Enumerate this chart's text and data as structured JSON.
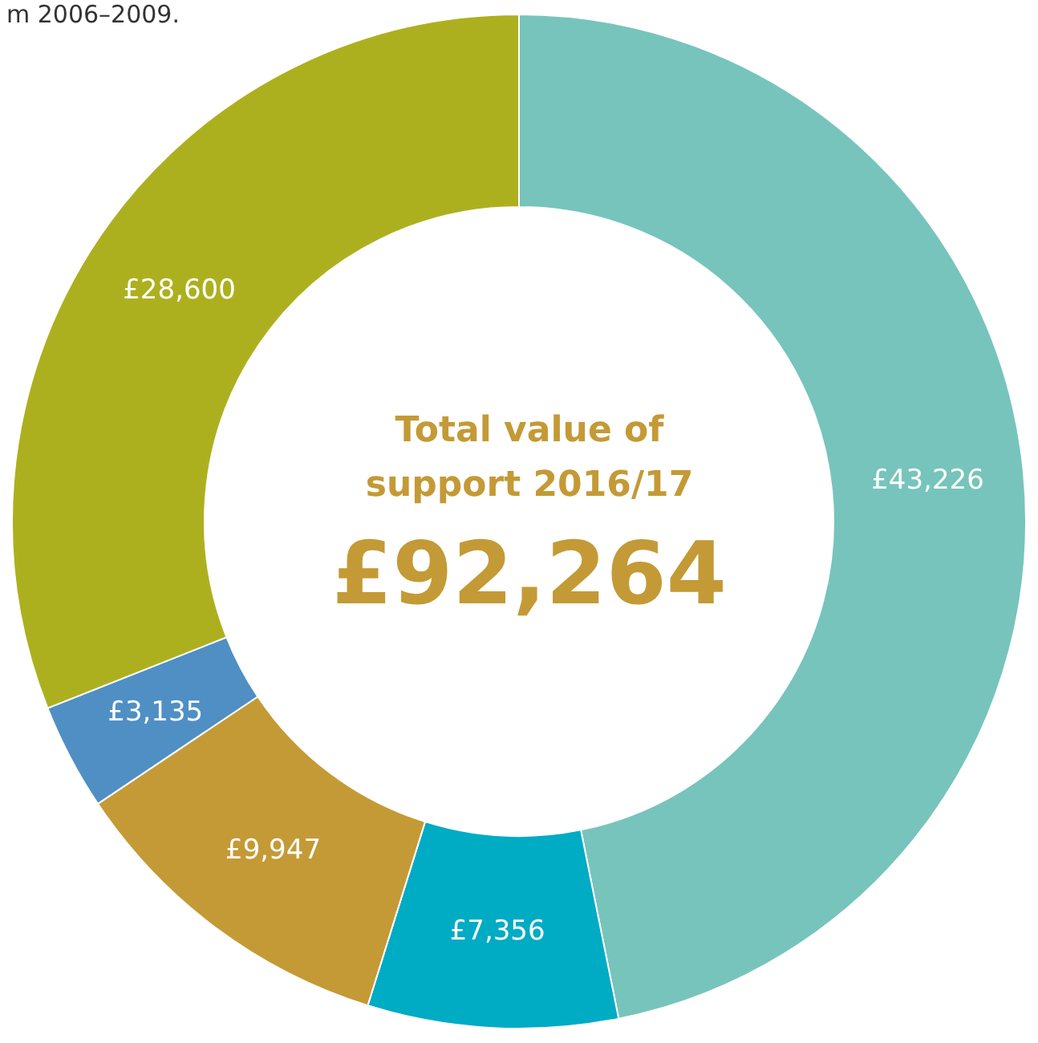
{
  "chart_data": {
    "type": "donut",
    "title": "Total value of support 2016/17",
    "categories": [
      null,
      null,
      null,
      null,
      null
    ],
    "values": [
      43226,
      7356,
      9947,
      3135,
      28600
    ],
    "colors": [
      "#77c4bc",
      "#00abc4",
      "#c49a36",
      "#4f8fc4",
      "#adb01e"
    ],
    "value_labels": [
      "£43,226",
      "£7,356",
      "£9,947",
      "£3,135",
      "£28,600"
    ],
    "annotations": [
      "£92,264",
      "m 2006–2009."
    ]
  }
}
